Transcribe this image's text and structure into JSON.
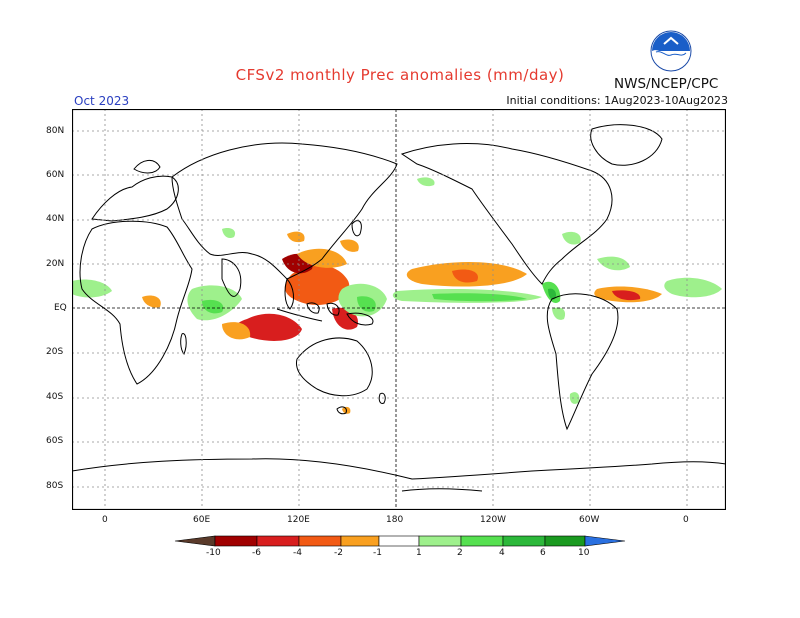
{
  "header": {
    "title": "CFSv2 monthly Prec anomalies (mm/day)",
    "agency": "NWS/NCEP/CPC",
    "month": "Oct 2023",
    "initial_conditions": "Initial conditions: 1Aug2023-10Aug2023",
    "logo_text": "NOAA"
  },
  "map": {
    "lat_labels": [
      "80N",
      "60N",
      "40N",
      "20N",
      "EQ",
      "20S",
      "40S",
      "60S",
      "80S"
    ],
    "lon_labels": [
      "0",
      "60E",
      "120E",
      "180",
      "120W",
      "60W",
      "0"
    ]
  },
  "colorbar": {
    "labels": [
      "-10",
      "-6",
      "-4",
      "-2",
      "-1",
      "1",
      "2",
      "4",
      "6",
      "10"
    ],
    "colors": {
      "lt_minus10": "#5a3a2a",
      "m10_m6": "#a00000",
      "m6_m4": "#d81e1e",
      "m4_m2": "#f25a14",
      "m2_m1": "#f9a020",
      "neutral": "#ffffff",
      "p1_p2": "#9ef08c",
      "p2_p4": "#56e050",
      "p4_p6": "#2cb83a",
      "p6_p10": "#1a9a20",
      "gt_10": "#2a70e0"
    }
  }
}
